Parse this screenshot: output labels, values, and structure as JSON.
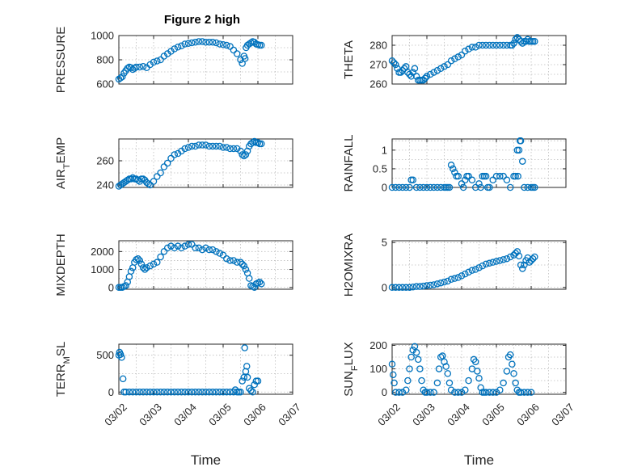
{
  "figure_title": "Figure 2 high",
  "colors": {
    "marker": "#0072BD",
    "axis": "#262626",
    "grid": "#bdbdbd"
  },
  "chart_data": [
    {
      "type": "scatter",
      "title": "Figure 2 high",
      "ylabel": "PRESSURE",
      "xlabel": "",
      "xlim": [
        0,
        5
      ],
      "ylim": [
        600,
        1000
      ],
      "yticks": [
        600,
        800,
        1000
      ],
      "xtick_labels": [
        "03/02",
        "03/03",
        "03/04",
        "03/05",
        "03/06",
        "03/07"
      ],
      "show_xtick_labels": false,
      "grid": true,
      "x": [
        0.0,
        0.05,
        0.1,
        0.15,
        0.2,
        0.25,
        0.3,
        0.35,
        0.4,
        0.45,
        0.5,
        0.6,
        0.7,
        0.8,
        0.9,
        1.0,
        1.1,
        1.2,
        1.3,
        1.4,
        1.5,
        1.6,
        1.7,
        1.8,
        1.9,
        2.0,
        2.1,
        2.2,
        2.3,
        2.4,
        2.5,
        2.6,
        2.7,
        2.8,
        2.9,
        3.0,
        3.1,
        3.2,
        3.3,
        3.4,
        3.5,
        3.55,
        3.6,
        3.63,
        3.66,
        3.7,
        3.75,
        3.8,
        3.85,
        3.9,
        3.95,
        4.0,
        4.05,
        4.1
      ],
      "y": [
        640,
        650,
        660,
        690,
        710,
        730,
        740,
        735,
        720,
        730,
        740,
        740,
        745,
        735,
        760,
        780,
        790,
        800,
        830,
        850,
        870,
        890,
        905,
        915,
        930,
        935,
        940,
        945,
        950,
        950,
        945,
        945,
        945,
        940,
        930,
        925,
        920,
        910,
        880,
        850,
        800,
        770,
        830,
        810,
        900,
        920,
        930,
        940,
        950,
        945,
        930,
        925,
        920,
        920
      ]
    },
    {
      "type": "scatter",
      "title": "",
      "ylabel": "THETA",
      "xlabel": "",
      "xlim": [
        0,
        5
      ],
      "ylim": [
        260,
        285
      ],
      "yticks": [
        260,
        270,
        280
      ],
      "xtick_labels": [
        "03/02",
        "03/03",
        "03/04",
        "03/05",
        "03/06",
        "03/07"
      ],
      "show_xtick_labels": false,
      "grid": true,
      "x": [
        0.0,
        0.05,
        0.1,
        0.15,
        0.2,
        0.25,
        0.3,
        0.35,
        0.4,
        0.45,
        0.5,
        0.55,
        0.6,
        0.65,
        0.7,
        0.75,
        0.8,
        0.85,
        0.9,
        0.95,
        1.0,
        1.1,
        1.2,
        1.3,
        1.4,
        1.5,
        1.6,
        1.7,
        1.8,
        1.9,
        2.0,
        2.1,
        2.2,
        2.3,
        2.4,
        2.5,
        2.6,
        2.7,
        2.8,
        2.9,
        3.0,
        3.1,
        3.2,
        3.3,
        3.4,
        3.45,
        3.5,
        3.55,
        3.6,
        3.65,
        3.7,
        3.75,
        3.8,
        3.85,
        3.9,
        3.95,
        4.0,
        4.05,
        4.1
      ],
      "y": [
        272,
        271,
        270,
        268,
        266,
        266,
        267,
        268,
        269,
        266,
        265,
        264,
        266,
        268,
        264,
        262,
        262,
        262,
        262,
        263,
        264,
        265,
        266,
        267,
        268,
        269,
        270,
        272,
        273,
        274,
        275,
        277,
        278,
        279,
        279,
        280,
        280,
        280,
        280,
        280,
        280,
        280,
        280,
        280,
        280,
        280,
        281,
        283,
        284,
        283,
        282,
        281,
        282,
        282,
        283,
        282,
        282,
        282,
        282
      ]
    },
    {
      "type": "scatter",
      "title": "",
      "ylabel": "AIR_TEMP",
      "xlabel": "",
      "xlim": [
        0,
        5
      ],
      "ylim": [
        238,
        278
      ],
      "yticks": [
        240,
        260
      ],
      "xtick_labels": [
        "03/02",
        "03/03",
        "03/04",
        "03/05",
        "03/06",
        "03/07"
      ],
      "show_xtick_labels": false,
      "grid": true,
      "x": [
        0.0,
        0.05,
        0.1,
        0.15,
        0.2,
        0.25,
        0.3,
        0.35,
        0.4,
        0.45,
        0.5,
        0.55,
        0.6,
        0.65,
        0.7,
        0.75,
        0.8,
        0.85,
        0.9,
        1.0,
        1.1,
        1.2,
        1.3,
        1.4,
        1.5,
        1.6,
        1.7,
        1.8,
        1.9,
        2.0,
        2.1,
        2.2,
        2.3,
        2.4,
        2.5,
        2.6,
        2.7,
        2.8,
        2.9,
        3.0,
        3.1,
        3.2,
        3.3,
        3.4,
        3.5,
        3.55,
        3.6,
        3.65,
        3.7,
        3.75,
        3.8,
        3.85,
        3.9,
        3.95,
        4.0,
        4.05,
        4.1
      ],
      "y": [
        239,
        240,
        241,
        242,
        243,
        244,
        245,
        245,
        246,
        245,
        245,
        244,
        243,
        245,
        245,
        244,
        242,
        241,
        240,
        243,
        247,
        250,
        255,
        258,
        262,
        265,
        266,
        268,
        270,
        271,
        272,
        272,
        273,
        273,
        273,
        272,
        272,
        272,
        272,
        271,
        271,
        270,
        270,
        270,
        268,
        265,
        264,
        265,
        268,
        272,
        274,
        275,
        276,
        275,
        275,
        274,
        274
      ]
    },
    {
      "type": "scatter",
      "title": "",
      "ylabel": "RAINFALL",
      "xlabel": "",
      "xlim": [
        0,
        5
      ],
      "ylim": [
        0,
        1.3
      ],
      "yticks": [
        0,
        0.5,
        1
      ],
      "xtick_labels": [
        "03/02",
        "03/03",
        "03/04",
        "03/05",
        "03/06",
        "03/07"
      ],
      "show_xtick_labels": false,
      "grid": true,
      "x": [
        0.0,
        0.1,
        0.2,
        0.3,
        0.4,
        0.5,
        0.55,
        0.6,
        0.7,
        0.8,
        0.9,
        1.0,
        1.1,
        1.2,
        1.3,
        1.4,
        1.5,
        1.55,
        1.6,
        1.65,
        1.7,
        1.75,
        1.8,
        1.85,
        1.9,
        2.0,
        2.05,
        2.1,
        2.15,
        2.2,
        2.3,
        2.4,
        2.5,
        2.55,
        2.6,
        2.65,
        2.7,
        2.75,
        2.8,
        2.9,
        3.0,
        3.1,
        3.2,
        3.3,
        3.4,
        3.5,
        3.55,
        3.6,
        3.62,
        3.65,
        3.68,
        3.7,
        3.75,
        3.8,
        3.9,
        4.0,
        4.05,
        4.1
      ],
      "y": [
        0,
        0,
        0,
        0,
        0,
        0,
        0.2,
        0.2,
        0,
        0,
        0,
        0,
        0,
        0,
        0,
        0,
        0,
        0,
        0,
        0,
        0.6,
        0.5,
        0.4,
        0.3,
        0.3,
        0.1,
        0,
        0.2,
        0.3,
        0.3,
        0.2,
        0,
        0.1,
        0,
        0.3,
        0.3,
        0.3,
        0,
        0,
        0.2,
        0.3,
        0.3,
        0.3,
        0.2,
        0,
        0.3,
        0.3,
        1.0,
        0.3,
        1.0,
        1.25,
        1.25,
        0.7,
        0,
        0,
        0,
        0,
        0
      ]
    },
    {
      "type": "scatter",
      "title": "",
      "ylabel": "MIXDEPTH",
      "xlabel": "",
      "xlim": [
        0,
        5
      ],
      "ylim": [
        -100,
        2600
      ],
      "yticks": [
        0,
        1000,
        2000
      ],
      "xtick_labels": [
        "03/02",
        "03/03",
        "03/04",
        "03/05",
        "03/06",
        "03/07"
      ],
      "show_xtick_labels": false,
      "grid": true,
      "x": [
        0.0,
        0.05,
        0.1,
        0.15,
        0.2,
        0.25,
        0.3,
        0.35,
        0.4,
        0.45,
        0.5,
        0.55,
        0.6,
        0.65,
        0.7,
        0.75,
        0.8,
        0.9,
        1.0,
        1.1,
        1.2,
        1.3,
        1.4,
        1.5,
        1.6,
        1.7,
        1.8,
        1.9,
        2.0,
        2.1,
        2.2,
        2.3,
        2.4,
        2.5,
        2.6,
        2.7,
        2.8,
        2.9,
        3.0,
        3.1,
        3.2,
        3.3,
        3.4,
        3.5,
        3.55,
        3.6,
        3.65,
        3.7,
        3.75,
        3.8,
        3.85,
        3.9,
        3.95,
        4.0,
        4.05,
        4.1
      ],
      "y": [
        0,
        0,
        0,
        50,
        100,
        300,
        600,
        900,
        1100,
        1400,
        1550,
        1600,
        1500,
        1300,
        1100,
        1000,
        1100,
        1200,
        1300,
        1400,
        1700,
        2000,
        2200,
        2300,
        2200,
        2300,
        2200,
        2300,
        2400,
        2400,
        2200,
        2200,
        2100,
        2200,
        2100,
        2100,
        2000,
        1900,
        1800,
        1600,
        1500,
        1500,
        1400,
        1400,
        1300,
        1200,
        1000,
        800,
        500,
        100,
        50,
        0,
        200,
        250,
        300,
        200
      ]
    },
    {
      "type": "scatter",
      "title": "",
      "ylabel": "H2OMIXRA",
      "xlabel": "",
      "xlim": [
        0,
        5
      ],
      "ylim": [
        -0.2,
        5.2
      ],
      "yticks": [
        0,
        5
      ],
      "xtick_labels": [
        "03/02",
        "03/03",
        "03/04",
        "03/05",
        "03/06",
        "03/07"
      ],
      "show_xtick_labels": false,
      "grid": true,
      "x": [
        0.0,
        0.1,
        0.2,
        0.3,
        0.4,
        0.5,
        0.6,
        0.7,
        0.8,
        0.9,
        1.0,
        1.1,
        1.2,
        1.3,
        1.4,
        1.5,
        1.6,
        1.7,
        1.8,
        1.9,
        2.0,
        2.1,
        2.2,
        2.3,
        2.4,
        2.5,
        2.6,
        2.7,
        2.8,
        2.9,
        3.0,
        3.1,
        3.2,
        3.3,
        3.4,
        3.5,
        3.55,
        3.6,
        3.65,
        3.7,
        3.75,
        3.8,
        3.85,
        3.9,
        3.95,
        4.0,
        4.05,
        4.1
      ],
      "y": [
        0,
        0,
        0,
        0,
        0,
        0,
        0.05,
        0.1,
        0.1,
        0.15,
        0.2,
        0.25,
        0.3,
        0.4,
        0.5,
        0.6,
        0.7,
        0.9,
        1.0,
        1.1,
        1.3,
        1.5,
        1.7,
        1.9,
        2.0,
        2.2,
        2.4,
        2.6,
        2.7,
        2.8,
        2.9,
        3.0,
        3.1,
        3.2,
        3.4,
        3.6,
        3.8,
        4.0,
        3.5,
        2.5,
        2.1,
        2.5,
        3.0,
        3.3,
        2.8,
        3.0,
        3.2,
        3.4
      ]
    },
    {
      "type": "scatter",
      "title": "",
      "ylabel": "TERR_MSL",
      "xlabel": "Time",
      "xlim": [
        0,
        5
      ],
      "ylim": [
        -30,
        650
      ],
      "yticks": [
        0,
        500
      ],
      "xtick_labels": [
        "03/02",
        "03/03",
        "03/04",
        "03/05",
        "03/06",
        "03/07"
      ],
      "show_xtick_labels": true,
      "grid": true,
      "x": [
        0.0,
        0.02,
        0.05,
        0.08,
        0.12,
        0.15,
        0.2,
        0.3,
        0.4,
        0.5,
        0.6,
        0.7,
        0.8,
        0.9,
        1.0,
        1.1,
        1.2,
        1.3,
        1.4,
        1.5,
        1.6,
        1.7,
        1.8,
        1.9,
        2.0,
        2.1,
        2.2,
        2.3,
        2.4,
        2.5,
        2.6,
        2.7,
        2.8,
        2.9,
        3.0,
        3.1,
        3.2,
        3.3,
        3.35,
        3.4,
        3.45,
        3.5,
        3.55,
        3.6,
        3.62,
        3.65,
        3.68,
        3.7,
        3.75,
        3.8,
        3.85,
        3.9,
        3.95,
        4.0
      ],
      "y": [
        500,
        540,
        510,
        470,
        180,
        0,
        0,
        0,
        0,
        0,
        0,
        0,
        0,
        0,
        0,
        0,
        0,
        0,
        0,
        0,
        0,
        0,
        0,
        0,
        0,
        0,
        0,
        0,
        0,
        0,
        0,
        0,
        0,
        0,
        0,
        0,
        0,
        0,
        30,
        0,
        0,
        0,
        150,
        200,
        600,
        280,
        350,
        200,
        50,
        20,
        0,
        100,
        150,
        150
      ]
    },
    {
      "type": "scatter",
      "title": "",
      "ylabel": "SUN_FLUX",
      "xlabel": "Time",
      "xlim": [
        0,
        5
      ],
      "ylim": [
        -8,
        205
      ],
      "yticks": [
        0,
        100,
        200
      ],
      "xtick_labels": [
        "03/02",
        "03/03",
        "03/04",
        "03/05",
        "03/06",
        "03/07"
      ],
      "show_xtick_labels": true,
      "grid": true,
      "x": [
        0.0,
        0.03,
        0.06,
        0.1,
        0.2,
        0.3,
        0.4,
        0.45,
        0.5,
        0.55,
        0.6,
        0.65,
        0.7,
        0.75,
        0.8,
        0.85,
        0.9,
        0.95,
        1.0,
        1.1,
        1.2,
        1.3,
        1.35,
        1.4,
        1.45,
        1.5,
        1.55,
        1.6,
        1.65,
        1.7,
        1.8,
        1.9,
        2.0,
        2.1,
        2.2,
        2.3,
        2.35,
        2.4,
        2.45,
        2.5,
        2.55,
        2.6,
        2.65,
        2.7,
        2.8,
        2.9,
        3.0,
        3.1,
        3.2,
        3.3,
        3.35,
        3.4,
        3.45,
        3.5,
        3.55,
        3.6,
        3.65,
        3.7,
        3.8,
        3.9,
        4.0
      ],
      "y": [
        120,
        75,
        40,
        0,
        0,
        0,
        10,
        50,
        100,
        150,
        180,
        195,
        170,
        140,
        100,
        50,
        10,
        0,
        0,
        0,
        0,
        40,
        100,
        150,
        155,
        130,
        110,
        80,
        40,
        10,
        0,
        0,
        0,
        10,
        50,
        100,
        140,
        130,
        90,
        60,
        20,
        0,
        0,
        0,
        0,
        0,
        0,
        10,
        40,
        90,
        150,
        160,
        120,
        80,
        40,
        10,
        0,
        0,
        0,
        0,
        0
      ]
    }
  ]
}
